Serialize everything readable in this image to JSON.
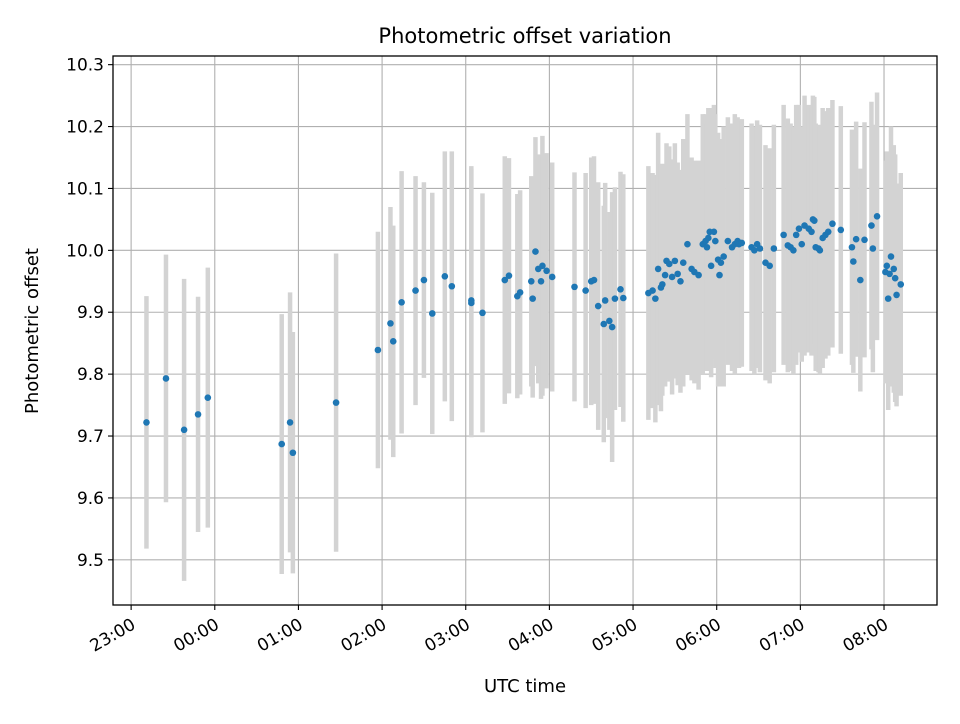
{
  "chart_data": {
    "type": "scatter",
    "title": "Photometric offset variation",
    "xlabel": "UTC time",
    "ylabel": "Photometric offset",
    "xlim": [
      "22:47",
      "08:38"
    ],
    "ylim": [
      9.427,
      10.314
    ],
    "x_ticks": [
      "23:00",
      "00:00",
      "01:00",
      "02:00",
      "03:00",
      "04:00",
      "05:00",
      "06:00",
      "07:00",
      "08:00"
    ],
    "y_ticks": [
      "9.5",
      "9.6",
      "9.7",
      "9.8",
      "9.9",
      "10.0",
      "10.1",
      "10.2",
      "10.3"
    ],
    "grid": true,
    "colors": {
      "points": "#1f77b4",
      "error_bars": "#d3d3d3",
      "grid": "#b0b0b0"
    },
    "points": [
      {
        "x": "23:11",
        "y": 9.722,
        "err": 0.204
      },
      {
        "x": "23:25",
        "y": 9.793,
        "err": 0.2
      },
      {
        "x": "23:38",
        "y": 9.71,
        "err": 0.244
      },
      {
        "x": "23:48",
        "y": 9.735,
        "err": 0.19
      },
      {
        "x": "23:55",
        "y": 9.762,
        "err": 0.21
      },
      {
        "x": "00:48",
        "y": 9.687,
        "err": 0.21
      },
      {
        "x": "00:54",
        "y": 9.722,
        "err": 0.21
      },
      {
        "x": "00:56",
        "y": 9.673,
        "err": 0.195
      },
      {
        "x": "01:27",
        "y": 9.754,
        "err": 0.241
      },
      {
        "x": "01:57",
        "y": 9.839,
        "err": 0.191
      },
      {
        "x": "02:06",
        "y": 9.882,
        "err": 0.188
      },
      {
        "x": "02:08",
        "y": 9.853,
        "err": 0.187
      },
      {
        "x": "02:14",
        "y": 9.916,
        "err": 0.212
      },
      {
        "x": "02:24",
        "y": 9.935,
        "err": 0.185
      },
      {
        "x": "02:30",
        "y": 9.952,
        "err": 0.158
      },
      {
        "x": "02:36",
        "y": 9.898,
        "err": 0.195
      },
      {
        "x": "02:45",
        "y": 9.958,
        "err": 0.202
      },
      {
        "x": "02:50",
        "y": 9.942,
        "err": 0.218
      },
      {
        "x": "03:04",
        "y": 9.919,
        "err": 0.217
      },
      {
        "x": "03:04",
        "y": 9.915,
        "err": 0.217
      },
      {
        "x": "03:12",
        "y": 9.899,
        "err": 0.193
      },
      {
        "x": "03:28",
        "y": 9.952,
        "err": 0.2
      },
      {
        "x": "03:31",
        "y": 9.959,
        "err": 0.19
      },
      {
        "x": "03:37",
        "y": 9.926,
        "err": 0.165
      },
      {
        "x": "03:39",
        "y": 9.932,
        "err": 0.165
      },
      {
        "x": "03:47",
        "y": 9.95,
        "err": 0.17
      },
      {
        "x": "03:48",
        "y": 9.922,
        "err": 0.16
      },
      {
        "x": "03:50",
        "y": 9.998,
        "err": 0.185
      },
      {
        "x": "03:52",
        "y": 9.97,
        "err": 0.185
      },
      {
        "x": "03:54",
        "y": 9.95,
        "err": 0.19
      },
      {
        "x": "03:55",
        "y": 9.975,
        "err": 0.21
      },
      {
        "x": "03:58",
        "y": 9.967,
        "err": 0.19
      },
      {
        "x": "04:02",
        "y": 9.957,
        "err": 0.185
      },
      {
        "x": "04:18",
        "y": 9.941,
        "err": 0.185
      },
      {
        "x": "04:26",
        "y": 9.935,
        "err": 0.19
      },
      {
        "x": "04:30",
        "y": 9.95,
        "err": 0.2
      },
      {
        "x": "04:32",
        "y": 9.952,
        "err": 0.2
      },
      {
        "x": "04:35",
        "y": 9.91,
        "err": 0.2
      },
      {
        "x": "04:39",
        "y": 9.881,
        "err": 0.191
      },
      {
        "x": "04:40",
        "y": 9.919,
        "err": 0.19
      },
      {
        "x": "04:43",
        "y": 9.886,
        "err": 0.176
      },
      {
        "x": "04:45",
        "y": 9.876,
        "err": 0.218
      },
      {
        "x": "04:47",
        "y": 9.922,
        "err": 0.18
      },
      {
        "x": "04:51",
        "y": 9.937,
        "err": 0.19
      },
      {
        "x": "04:53",
        "y": 9.923,
        "err": 0.2
      },
      {
        "x": "05:11",
        "y": 9.931,
        "err": 0.205
      },
      {
        "x": "05:14",
        "y": 9.935,
        "err": 0.19
      },
      {
        "x": "05:16",
        "y": 9.922,
        "err": 0.2
      },
      {
        "x": "05:18",
        "y": 9.97,
        "err": 0.22
      },
      {
        "x": "05:20",
        "y": 9.94,
        "err": 0.2
      },
      {
        "x": "05:21",
        "y": 9.945,
        "err": 0.18
      },
      {
        "x": "05:23",
        "y": 9.96,
        "err": 0.18
      },
      {
        "x": "05:24",
        "y": 9.983,
        "err": 0.19
      },
      {
        "x": "05:26",
        "y": 9.978,
        "err": 0.19
      },
      {
        "x": "05:28",
        "y": 9.957,
        "err": 0.19
      },
      {
        "x": "05:30",
        "y": 9.983,
        "err": 0.19
      },
      {
        "x": "05:32",
        "y": 9.962,
        "err": 0.18
      },
      {
        "x": "05:34",
        "y": 9.95,
        "err": 0.18
      },
      {
        "x": "05:36",
        "y": 9.98,
        "err": 0.2
      },
      {
        "x": "05:39",
        "y": 10.01,
        "err": 0.21
      },
      {
        "x": "05:42",
        "y": 9.97,
        "err": 0.18
      },
      {
        "x": "05:44",
        "y": 9.965,
        "err": 0.18
      },
      {
        "x": "05:47",
        "y": 9.96,
        "err": 0.185
      },
      {
        "x": "05:50",
        "y": 10.01,
        "err": 0.21
      },
      {
        "x": "05:52",
        "y": 10.015,
        "err": 0.205
      },
      {
        "x": "05:53",
        "y": 10.005,
        "err": 0.2
      },
      {
        "x": "05:54",
        "y": 10.02,
        "err": 0.21
      },
      {
        "x": "05:55",
        "y": 10.03,
        "err": 0.2
      },
      {
        "x": "05:56",
        "y": 9.975,
        "err": 0.18
      },
      {
        "x": "05:58",
        "y": 10.03,
        "err": 0.205
      },
      {
        "x": "05:59",
        "y": 10.015,
        "err": 0.205
      },
      {
        "x": "06:01",
        "y": 9.985,
        "err": 0.205
      },
      {
        "x": "06:02",
        "y": 9.96,
        "err": 0.18
      },
      {
        "x": "06:03",
        "y": 9.98,
        "err": 0.2
      },
      {
        "x": "06:05",
        "y": 9.99,
        "err": 0.21
      },
      {
        "x": "06:08",
        "y": 10.015,
        "err": 0.2
      },
      {
        "x": "06:11",
        "y": 10.005,
        "err": 0.2
      },
      {
        "x": "06:13",
        "y": 10.01,
        "err": 0.21
      },
      {
        "x": "06:15",
        "y": 10.015,
        "err": 0.2
      },
      {
        "x": "06:16",
        "y": 10.01,
        "err": 0.2
      },
      {
        "x": "06:18",
        "y": 10.012,
        "err": 0.2
      },
      {
        "x": "06:25",
        "y": 10.005,
        "err": 0.2
      },
      {
        "x": "06:27",
        "y": 10.0,
        "err": 0.2
      },
      {
        "x": "06:29",
        "y": 10.01,
        "err": 0.2
      },
      {
        "x": "06:31",
        "y": 10.003,
        "err": 0.2
      },
      {
        "x": "06:35",
        "y": 9.98,
        "err": 0.19
      },
      {
        "x": "06:38",
        "y": 9.975,
        "err": 0.19
      },
      {
        "x": "06:41",
        "y": 10.003,
        "err": 0.2
      },
      {
        "x": "06:48",
        "y": 10.025,
        "err": 0.21
      },
      {
        "x": "06:51",
        "y": 10.008,
        "err": 0.205
      },
      {
        "x": "06:53",
        "y": 10.005,
        "err": 0.2
      },
      {
        "x": "06:55",
        "y": 10.0,
        "err": 0.2
      },
      {
        "x": "06:57",
        "y": 10.025,
        "err": 0.21
      },
      {
        "x": "06:59",
        "y": 10.035,
        "err": 0.2
      },
      {
        "x": "07:01",
        "y": 10.01,
        "err": 0.19
      },
      {
        "x": "07:03",
        "y": 10.04,
        "err": 0.21
      },
      {
        "x": "07:06",
        "y": 10.035,
        "err": 0.2
      },
      {
        "x": "07:08",
        "y": 10.03,
        "err": 0.2
      },
      {
        "x": "07:09",
        "y": 10.05,
        "err": 0.2
      },
      {
        "x": "07:10",
        "y": 10.048,
        "err": 0.2
      },
      {
        "x": "07:11",
        "y": 10.005,
        "err": 0.2
      },
      {
        "x": "07:13",
        "y": 10.003,
        "err": 0.2
      },
      {
        "x": "07:14",
        "y": 10.0,
        "err": 0.2
      },
      {
        "x": "07:16",
        "y": 10.02,
        "err": 0.21
      },
      {
        "x": "07:18",
        "y": 10.025,
        "err": 0.2
      },
      {
        "x": "07:20",
        "y": 10.03,
        "err": 0.2
      },
      {
        "x": "07:23",
        "y": 10.043,
        "err": 0.2
      },
      {
        "x": "07:29",
        "y": 10.033,
        "err": 0.2
      },
      {
        "x": "07:37",
        "y": 10.005,
        "err": 0.19
      },
      {
        "x": "07:38",
        "y": 9.982,
        "err": 0.18
      },
      {
        "x": "07:40",
        "y": 10.018,
        "err": 0.19
      },
      {
        "x": "07:43",
        "y": 9.952,
        "err": 0.18
      },
      {
        "x": "07:46",
        "y": 10.017,
        "err": 0.19
      },
      {
        "x": "07:51",
        "y": 10.04,
        "err": 0.2
      },
      {
        "x": "07:52",
        "y": 10.003,
        "err": 0.2
      },
      {
        "x": "07:55",
        "y": 10.055,
        "err": 0.2
      },
      {
        "x": "08:01",
        "y": 9.965,
        "err": 0.18
      },
      {
        "x": "08:02",
        "y": 9.975,
        "err": 0.185
      },
      {
        "x": "08:03",
        "y": 9.922,
        "err": 0.18
      },
      {
        "x": "08:04",
        "y": 9.962,
        "err": 0.18
      },
      {
        "x": "08:05",
        "y": 9.99,
        "err": 0.21
      },
      {
        "x": "08:07",
        "y": 9.97,
        "err": 0.2
      },
      {
        "x": "08:08",
        "y": 9.955,
        "err": 0.2
      },
      {
        "x": "08:09",
        "y": 9.928,
        "err": 0.18
      },
      {
        "x": "08:12",
        "y": 9.945,
        "err": 0.18
      }
    ]
  }
}
